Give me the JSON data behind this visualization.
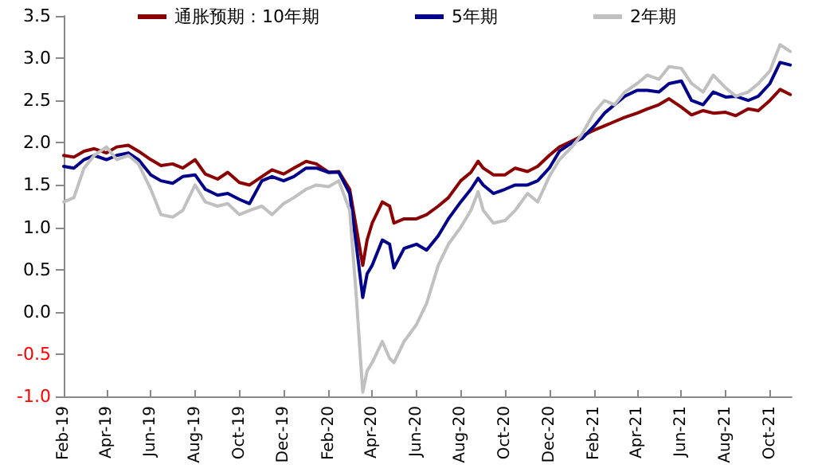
{
  "chart_data": {
    "type": "line",
    "legend": "top",
    "grid": false,
    "marker": "none",
    "line_style": "solid",
    "xlim": [
      "2019-02-01",
      "2021-10-31"
    ],
    "xticks": [
      {
        "value": "2019-02-01",
        "label": "Feb-19"
      },
      {
        "value": "2019-04-01",
        "label": "Apr-19"
      },
      {
        "value": "2019-06-01",
        "label": "Jun-19"
      },
      {
        "value": "2019-08-01",
        "label": "Aug-19"
      },
      {
        "value": "2019-10-01",
        "label": "Oct-19"
      },
      {
        "value": "2019-12-01",
        "label": "Dec-19"
      },
      {
        "value": "2020-02-01",
        "label": "Feb-20"
      },
      {
        "value": "2020-04-01",
        "label": "Apr-20"
      },
      {
        "value": "2020-06-01",
        "label": "Jun-20"
      },
      {
        "value": "2020-08-01",
        "label": "Aug-20"
      },
      {
        "value": "2020-10-01",
        "label": "Oct-20"
      },
      {
        "value": "2020-12-01",
        "label": "Dec-20"
      },
      {
        "value": "2021-02-01",
        "label": "Feb-21"
      },
      {
        "value": "2021-04-01",
        "label": "Apr-21"
      },
      {
        "value": "2021-06-01",
        "label": "Jun-21"
      },
      {
        "value": "2021-08-01",
        "label": "Aug-21"
      },
      {
        "value": "2021-10-01",
        "label": "Oct-21"
      }
    ],
    "ylim": [
      -1,
      3.5
    ],
    "yticks": [
      {
        "value": -1,
        "label": "-1.0"
      },
      -0.5,
      {
        "value": 0,
        "label": "0.0"
      },
      0.5,
      {
        "value": 1,
        "label": "1.0"
      },
      1.5,
      {
        "value": 2,
        "label": "2.0"
      },
      2.5,
      {
        "value": 3,
        "label": "3.0"
      },
      3.5
    ],
    "x": [
      "2019-02-01",
      "2019-02-15",
      "2019-03-01",
      "2019-03-15",
      "2019-04-01",
      "2019-04-15",
      "2019-05-01",
      "2019-05-15",
      "2019-06-01",
      "2019-06-15",
      "2019-07-01",
      "2019-07-15",
      "2019-08-01",
      "2019-08-15",
      "2019-09-01",
      "2019-09-15",
      "2019-10-01",
      "2019-10-15",
      "2019-11-01",
      "2019-11-15",
      "2019-12-01",
      "2019-12-15",
      "2020-01-01",
      "2020-01-15",
      "2020-02-01",
      "2020-02-15",
      "2020-03-01",
      "2020-03-10",
      "2020-03-19",
      "2020-03-25",
      "2020-04-01",
      "2020-04-15",
      "2020-04-25",
      "2020-05-01",
      "2020-05-15",
      "2020-06-01",
      "2020-06-15",
      "2020-07-01",
      "2020-07-15",
      "2020-08-01",
      "2020-08-15",
      "2020-08-25",
      "2020-09-01",
      "2020-09-15",
      "2020-10-01",
      "2020-10-15",
      "2020-11-01",
      "2020-11-15",
      "2020-12-01",
      "2020-12-15",
      "2021-01-01",
      "2021-01-15",
      "2021-02-01",
      "2021-02-15",
      "2021-03-01",
      "2021-03-15",
      "2021-04-01",
      "2021-04-15",
      "2021-05-01",
      "2021-05-15",
      "2021-06-01",
      "2021-06-15",
      "2021-07-01",
      "2021-07-15",
      "2021-08-01",
      "2021-08-15",
      "2021-09-01",
      "2021-09-15",
      "2021-10-01",
      "2021-10-15",
      "2021-10-29"
    ],
    "series": [
      {
        "name": "通胀预期：10年期",
        "color": "#8b0000",
        "values": [
          1.85,
          1.83,
          1.9,
          1.93,
          1.88,
          1.95,
          1.97,
          1.9,
          1.8,
          1.73,
          1.75,
          1.7,
          1.8,
          1.63,
          1.57,
          1.65,
          1.53,
          1.5,
          1.6,
          1.68,
          1.63,
          1.7,
          1.78,
          1.75,
          1.65,
          1.66,
          1.45,
          1.0,
          0.55,
          0.85,
          1.05,
          1.3,
          1.25,
          1.05,
          1.1,
          1.1,
          1.15,
          1.25,
          1.35,
          1.55,
          1.65,
          1.78,
          1.7,
          1.62,
          1.62,
          1.7,
          1.66,
          1.72,
          1.85,
          1.95,
          2.02,
          2.08,
          2.15,
          2.2,
          2.25,
          2.3,
          2.35,
          2.4,
          2.45,
          2.52,
          2.42,
          2.33,
          2.38,
          2.35,
          2.36,
          2.32,
          2.4,
          2.38,
          2.5,
          2.63,
          2.57
        ]
      },
      {
        "name": "5年期",
        "color": "#00008b",
        "values": [
          1.72,
          1.7,
          1.8,
          1.85,
          1.8,
          1.85,
          1.88,
          1.8,
          1.62,
          1.55,
          1.52,
          1.6,
          1.62,
          1.45,
          1.38,
          1.4,
          1.33,
          1.28,
          1.55,
          1.6,
          1.55,
          1.6,
          1.7,
          1.7,
          1.65,
          1.65,
          1.4,
          0.8,
          0.17,
          0.45,
          0.55,
          0.85,
          0.8,
          0.52,
          0.75,
          0.8,
          0.73,
          0.9,
          1.1,
          1.3,
          1.45,
          1.58,
          1.5,
          1.4,
          1.45,
          1.5,
          1.5,
          1.55,
          1.7,
          1.9,
          2.0,
          2.05,
          2.2,
          2.35,
          2.45,
          2.55,
          2.62,
          2.62,
          2.6,
          2.7,
          2.73,
          2.5,
          2.45,
          2.6,
          2.54,
          2.55,
          2.5,
          2.55,
          2.7,
          2.95,
          2.92
        ]
      },
      {
        "name": "2年期",
        "color": "#c0c0c0",
        "values": [
          1.3,
          1.35,
          1.7,
          1.85,
          1.95,
          1.8,
          1.85,
          1.75,
          1.45,
          1.15,
          1.12,
          1.2,
          1.5,
          1.3,
          1.25,
          1.28,
          1.15,
          1.2,
          1.25,
          1.15,
          1.28,
          1.35,
          1.45,
          1.5,
          1.48,
          1.55,
          1.2,
          0.2,
          -0.95,
          -0.7,
          -0.6,
          -0.35,
          -0.55,
          -0.6,
          -0.35,
          -0.15,
          0.1,
          0.55,
          0.8,
          1.0,
          1.2,
          1.42,
          1.2,
          1.05,
          1.08,
          1.2,
          1.4,
          1.3,
          1.6,
          1.8,
          1.95,
          2.1,
          2.36,
          2.5,
          2.45,
          2.6,
          2.7,
          2.8,
          2.75,
          2.9,
          2.88,
          2.7,
          2.6,
          2.8,
          2.65,
          2.55,
          2.6,
          2.7,
          2.85,
          3.16,
          3.08
        ]
      }
    ]
  }
}
